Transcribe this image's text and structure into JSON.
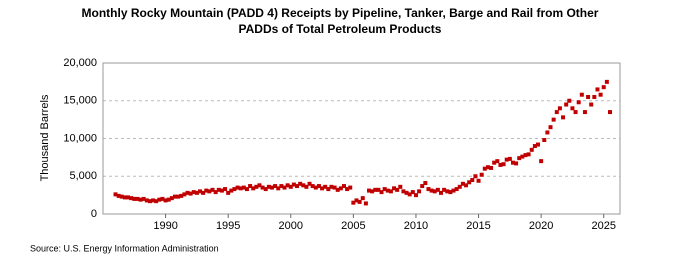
{
  "chart_data": {
    "type": "scatter",
    "title_lines": [
      "Monthly Rocky Mountain (PADD 4) Receipts by Pipeline, Tanker, Barge and Rail from Other",
      "PADDs of Total Petroleum Products"
    ],
    "y_label": "Thousand Barrels",
    "source": "Source: U.S. Energy Information Administration",
    "color": "#c00000",
    "grid": true,
    "xlim": [
      1985,
      2026.3
    ],
    "xticks": [
      1990,
      1995,
      2000,
      2005,
      2010,
      2015,
      2020,
      2025
    ],
    "ylim": [
      0,
      20000
    ],
    "yticks": [
      0,
      {
        "value": 5000,
        "label": "5,000"
      },
      {
        "value": 10000,
        "label": "10,000"
      },
      {
        "value": 15000,
        "label": "15,000"
      },
      {
        "value": 20000,
        "label": "20,000"
      }
    ],
    "x": [
      1986.0,
      1986.25,
      1986.5,
      1986.75,
      1987.0,
      1987.25,
      1987.5,
      1987.75,
      1988.0,
      1988.25,
      1988.5,
      1988.75,
      1989.0,
      1989.25,
      1989.5,
      1989.75,
      1990.0,
      1990.25,
      1990.5,
      1990.75,
      1991.0,
      1991.25,
      1991.5,
      1991.75,
      1992.0,
      1992.25,
      1992.5,
      1992.75,
      1993.0,
      1993.25,
      1993.5,
      1993.75,
      1994.0,
      1994.25,
      1994.5,
      1994.75,
      1995.0,
      1995.25,
      1995.5,
      1995.75,
      1996.0,
      1996.25,
      1996.5,
      1996.75,
      1997.0,
      1997.25,
      1997.5,
      1997.75,
      1998.0,
      1998.25,
      1998.5,
      1998.75,
      1999.0,
      1999.25,
      1999.5,
      1999.75,
      2000.0,
      2000.25,
      2000.5,
      2000.75,
      2001.0,
      2001.25,
      2001.5,
      2001.75,
      2002.0,
      2002.25,
      2002.5,
      2002.75,
      2003.0,
      2003.25,
      2003.5,
      2003.75,
      2004.0,
      2004.25,
      2004.5,
      2004.75,
      2005.0,
      2005.25,
      2005.5,
      2005.75,
      2006.0,
      2006.25,
      2006.5,
      2006.75,
      2007.0,
      2007.25,
      2007.5,
      2007.75,
      2008.0,
      2008.25,
      2008.5,
      2008.75,
      2009.0,
      2009.25,
      2009.5,
      2009.75,
      2010.0,
      2010.25,
      2010.5,
      2010.75,
      2011.0,
      2011.25,
      2011.5,
      2011.75,
      2012.0,
      2012.25,
      2012.5,
      2012.75,
      2013.0,
      2013.25,
      2013.5,
      2013.75,
      2014.0,
      2014.25,
      2014.5,
      2014.75,
      2015.0,
      2015.25,
      2015.5,
      2015.75,
      2016.0,
      2016.25,
      2016.5,
      2016.75,
      2017.0,
      2017.25,
      2017.5,
      2017.75,
      2018.0,
      2018.25,
      2018.5,
      2018.75,
      2019.0,
      2019.25,
      2019.5,
      2019.75,
      2020.0,
      2020.25,
      2020.5,
      2020.75,
      2021.0,
      2021.25,
      2021.5,
      2021.75,
      2022.0,
      2022.25,
      2022.5,
      2022.75,
      2023.0,
      2023.25,
      2023.5,
      2023.75,
      2024.0,
      2024.25,
      2024.5,
      2024.75,
      2025.0,
      2025.25,
      2025.5
    ],
    "values": [
      2600,
      2400,
      2300,
      2200,
      2200,
      2100,
      2000,
      2000,
      1900,
      2000,
      1800,
      1700,
      1800,
      1700,
      1900,
      2000,
      1800,
      1900,
      2100,
      2300,
      2300,
      2400,
      2600,
      2800,
      2700,
      2900,
      2800,
      3000,
      2800,
      3100,
      3000,
      3200,
      2900,
      3200,
      3100,
      3300,
      2800,
      3100,
      3300,
      3500,
      3400,
      3500,
      3300,
      3700,
      3400,
      3600,
      3800,
      3500,
      3300,
      3600,
      3500,
      3700,
      3400,
      3700,
      3500,
      3800,
      3600,
      3900,
      3700,
      4000,
      3800,
      3600,
      4000,
      3700,
      3500,
      3700,
      3400,
      3600,
      3300,
      3600,
      3500,
      3200,
      3400,
      3700,
      3300,
      3500,
      1500,
      1800,
      1600,
      2100,
      1400,
      3100,
      3000,
      3200,
      3200,
      2900,
      3300,
      3100,
      3000,
      3400,
      3200,
      3600,
      3000,
      2800,
      2600,
      2900,
      2500,
      3000,
      3700,
      4100,
      3300,
      3100,
      3000,
      3200,
      2800,
      3200,
      3000,
      2900,
      3100,
      3300,
      3600,
      4000,
      3800,
      4200,
      4500,
      5000,
      4400,
      5200,
      6000,
      6200,
      6100,
      6800,
      7000,
      6500,
      6600,
      7200,
      7300,
      6800,
      6700,
      7400,
      7600,
      7800,
      7900,
      8500,
      9000,
      9200,
      7000,
      9800,
      10800,
      11500,
      12500,
      13500,
      14000,
      12800,
      14500,
      15000,
      14000,
      13500,
      14800,
      15800,
      13500,
      15500,
      14500,
      15500,
      16500,
      15800,
      16800,
      17500,
      13500
    ]
  }
}
